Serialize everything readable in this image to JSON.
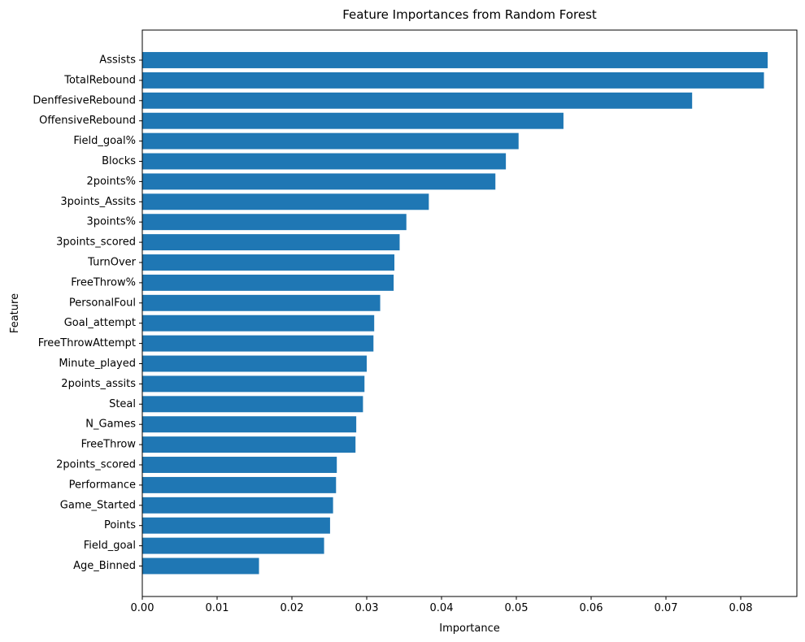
{
  "chart_data": {
    "type": "bar",
    "orientation": "horizontal",
    "title": "Feature Importances from Random Forest",
    "xlabel": "Importance",
    "ylabel": "Feature",
    "xlim": [
      0,
      0.0875
    ],
    "xticks": [
      "0.00",
      "0.01",
      "0.02",
      "0.03",
      "0.04",
      "0.05",
      "0.06",
      "0.07",
      "0.08"
    ],
    "grid": false,
    "bar_color": "#1f77b4",
    "categories": [
      "Assists",
      "TotalRebound",
      "DenffesiveRebound",
      "OffensiveRebound",
      "Field_goal%",
      "Blocks",
      "2points%",
      "3points_Assits",
      "3points%",
      "3points_scored",
      "TurnOver",
      "FreeThrow%",
      "PersonalFoul",
      "Goal_attempt",
      "FreeThrowAttempt",
      "Minute_played",
      "2points_assits",
      "Steal",
      "N_Games",
      "FreeThrow",
      "2points_scored",
      "Performance",
      "Game_Started",
      "Points",
      "Field_goal",
      "Age_Binned"
    ],
    "values": [
      0.0836,
      0.0831,
      0.0735,
      0.0563,
      0.0503,
      0.0486,
      0.0472,
      0.0383,
      0.0353,
      0.0344,
      0.0337,
      0.0336,
      0.0318,
      0.031,
      0.0309,
      0.03,
      0.0297,
      0.0295,
      0.0286,
      0.0285,
      0.026,
      0.0259,
      0.0255,
      0.0251,
      0.0243,
      0.0156
    ]
  }
}
